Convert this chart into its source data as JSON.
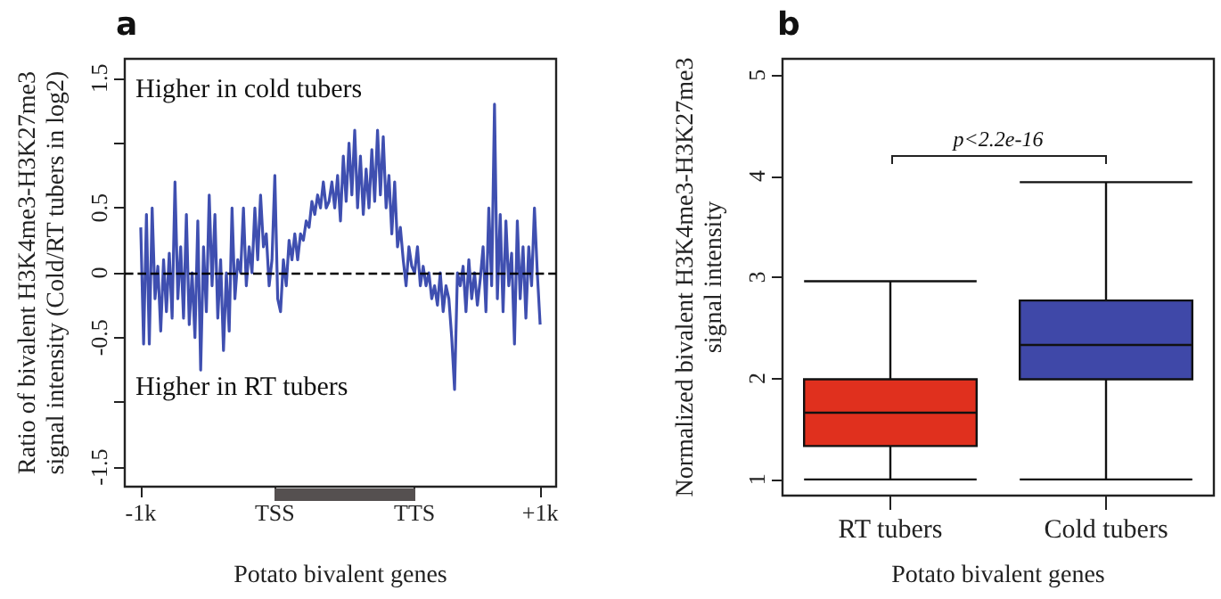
{
  "chart_data": [
    {
      "type": "line",
      "title": "a",
      "xlabel": "Potato bivalent genes",
      "ylabel": "Ratio of bivalent H3K4me3-H3K27me3\nsignal intensity (Cold/RT tubers in log2)",
      "annotations": [
        "Higher in cold tubers",
        "Higher in RT tubers"
      ],
      "categories": [
        "-1k",
        null,
        null,
        null,
        null,
        null,
        null,
        null,
        null,
        null,
        null,
        null,
        null,
        null,
        null,
        null,
        null,
        null,
        null,
        null,
        null,
        null,
        null,
        null,
        null,
        null,
        null,
        null,
        null,
        null,
        null,
        null,
        null,
        null,
        null,
        null,
        null,
        null,
        null,
        null,
        null,
        null,
        null,
        null,
        null,
        null,
        null,
        "TSS",
        null,
        null,
        null,
        null,
        null,
        null,
        null,
        null,
        null,
        null,
        null,
        null,
        null,
        null,
        null,
        null,
        null,
        null,
        null,
        null,
        null,
        null,
        null,
        null,
        null,
        null,
        null,
        null,
        null,
        null,
        null,
        null,
        null,
        null,
        null,
        null,
        null,
        null,
        null,
        null,
        null,
        null,
        null,
        null,
        null,
        null,
        null,
        null,
        "TTS",
        null,
        null,
        null,
        null,
        null,
        null,
        null,
        null,
        null,
        null,
        null,
        null,
        null,
        null,
        null,
        null,
        null,
        null,
        null,
        null,
        null,
        null,
        null,
        null,
        null,
        null,
        null,
        null,
        null,
        null,
        null,
        null,
        null,
        null,
        null,
        null,
        null,
        null,
        null,
        null,
        null,
        null,
        null,
        "+1k"
      ],
      "series": [
        {
          "color": "#3f4fb0",
          "values": [
            0.35,
            -0.55,
            0.45,
            -0.55,
            0.5,
            -0.2,
            0.05,
            -0.45,
            0.1,
            -0.3,
            0.15,
            -0.35,
            0.7,
            -0.2,
            0.2,
            -0.35,
            0.45,
            -0.4,
            0,
            -0.5,
            0.4,
            -0.75,
            0.2,
            -0.3,
            0.6,
            -0.1,
            0.45,
            -0.35,
            0.1,
            -0.6,
            0,
            -0.45,
            0.5,
            -0.2,
            0.1,
            0,
            0.5,
            -0.1,
            0.2,
            0,
            0.5,
            0.1,
            0.6,
            0.2,
            0.3,
            -0.1,
            0.1,
            0.75,
            -0.2,
            -0.3,
            0.1,
            -0.1,
            0.25,
            0.1,
            0.3,
            0.1,
            0.3,
            0.25,
            0.4,
            0.35,
            0.55,
            0.45,
            0.6,
            0.5,
            0.7,
            0.5,
            0.55,
            0.7,
            0.5,
            0.75,
            0.4,
            0.9,
            0.55,
            1,
            0.6,
            1.1,
            0.5,
            0.9,
            0.45,
            0.8,
            0.5,
            0.95,
            0.55,
            1.1,
            0.6,
            1.05,
            0.5,
            0.75,
            0.3,
            0.7,
            0.2,
            0.35,
            0.1,
            -0.1,
            0.2,
            0.05,
            0,
            0.2,
            -0.1,
            0.05,
            -0.1,
            0,
            -0.2,
            -0.1,
            -0.25,
            0,
            -0.3,
            -0.1,
            -0.2,
            -0.5,
            -0.9,
            0,
            -0.1,
            0.05,
            -0.3,
            0.1,
            -0.2,
            0,
            -0.25,
            -0.05,
            0.2,
            -0.3,
            0.5,
            -0.1,
            1.3,
            -0.2,
            0.45,
            -0.3,
            0.4,
            -0.1,
            0.15,
            -0.55,
            0.4,
            -0.2,
            0.2,
            -0.35,
            0.2,
            -0.1,
            0.5,
            0,
            -0.4
          ]
        }
      ],
      "ylim": [
        -1.65,
        1.65
      ],
      "yticks": [
        -1.5,
        {
          "value": -1,
          "label": null
        },
        -0.5,
        0,
        0.5,
        {
          "value": 1,
          "label": null
        },
        1.5
      ],
      "ref_lines": [
        {
          "axis": "y",
          "value": 0,
          "color": "#000000",
          "line_style": "dashed"
        }
      ]
    },
    {
      "type": "box",
      "title": "b",
      "xlabel": "Potato bivalent genes",
      "ylabel": "Normalized bivalent H3K4me3-H3K27me3\nsignal intensity",
      "annotations": [
        "p<2.2e-16"
      ],
      "categories": [
        "RT tubers",
        "Cold tubers"
      ],
      "boxes": [
        {
          "low": 1.0,
          "q1": 1.33,
          "median": 1.66,
          "q3": 1.99,
          "high": 2.96
        },
        {
          "low": 1.0,
          "q1": 1.99,
          "median": 2.33,
          "q3": 2.77,
          "high": 3.94
        }
      ],
      "colors": [
        "#e0301e",
        "#3f48a8"
      ],
      "ylim": [
        0.84,
        5.16
      ],
      "yticks": [
        1,
        2,
        3,
        4,
        5
      ]
    }
  ]
}
